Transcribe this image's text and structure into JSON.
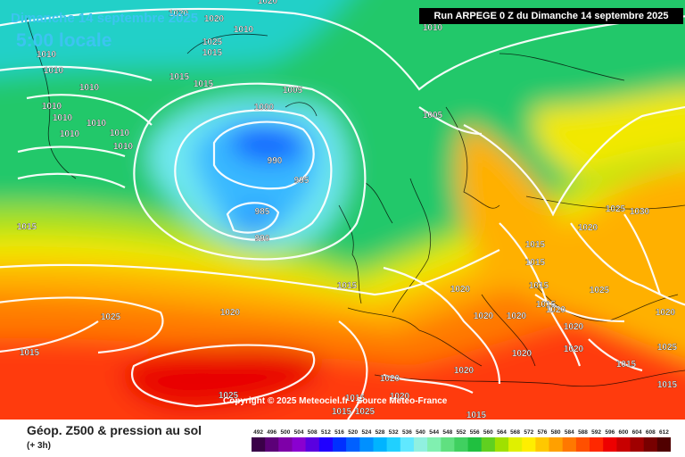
{
  "header": {
    "date": "Dimanche 14 septembre 2025",
    "time": "5:00 locale",
    "run": "Run ARPEGE 0 Z du Dimanche 14 septembre 2025"
  },
  "copyright": "Copyright © 2025 Meteociel.fr - Source Meteo-France",
  "footer": {
    "title": "Géop. Z500 & pression au sol",
    "subtitle": "(+ 3h)"
  },
  "scale": {
    "ticks": [
      "492",
      "496",
      "500",
      "504",
      "508",
      "512",
      "516",
      "520",
      "524",
      "528",
      "532",
      "536",
      "540",
      "544",
      "548",
      "552",
      "556",
      "560",
      "564",
      "568",
      "572",
      "576",
      "580",
      "584",
      "588",
      "592",
      "596",
      "600",
      "604",
      "608",
      "612"
    ],
    "colors": [
      "#3a0048",
      "#5c0078",
      "#7e00a8",
      "#8a00d0",
      "#5a00e0",
      "#2000ff",
      "#0030ff",
      "#0060ff",
      "#0090ff",
      "#00b4ff",
      "#20d0ff",
      "#60e8ff",
      "#90f0e0",
      "#80f0b0",
      "#60e080",
      "#40d060",
      "#20c040",
      "#60d020",
      "#a0e000",
      "#e0f000",
      "#ffee00",
      "#ffc800",
      "#ffa000",
      "#ff7800",
      "#ff5000",
      "#ff2800",
      "#ee0000",
      "#c80000",
      "#a00000",
      "#780000",
      "#500000"
    ]
  },
  "isobars": [
    "1020",
    "1020",
    "1020",
    "1010",
    "1025",
    "1015",
    "1010",
    "1010",
    "1015",
    "1015",
    "1010",
    "1010",
    "1010",
    "1010",
    "1010",
    "1010",
    "1010",
    "1010",
    "1005",
    "1000",
    "1005",
    "990",
    "995",
    "985",
    "990",
    "1015",
    "1015",
    "1020",
    "1025",
    "1020",
    "1015",
    "1025",
    "1030",
    "1020",
    "1015",
    "1015",
    "1015",
    "1020",
    "1025",
    "1020",
    "1020",
    "1020",
    "1020",
    "1020",
    "1025",
    "1015",
    "1020",
    "1020",
    "1020",
    "1020",
    "1015",
    "1015",
    "1015",
    "1025",
    "1015",
    "1025",
    "1015"
  ]
}
